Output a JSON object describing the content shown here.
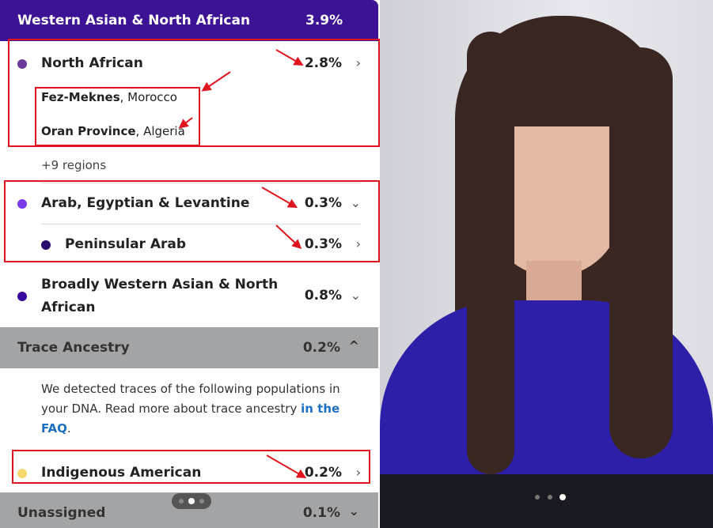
{
  "header": {
    "title": "Western Asian & North African",
    "percent": "3.9%"
  },
  "north_african": {
    "label": "North African",
    "percent": "2.8%",
    "dot_color": "#6b3a9a",
    "regions": [
      {
        "name": "Fez-Meknes",
        "country": ", Morocco"
      },
      {
        "name": "Oran Province",
        "country": ", Algeria"
      }
    ],
    "more": "+9 regions"
  },
  "arab": {
    "label": "Arab, Egyptian & Levantine",
    "percent": "0.3%",
    "dot_color": "#7c3aed",
    "child": {
      "label": "Peninsular Arab",
      "percent": "0.3%",
      "dot_color": "#2a0a6b"
    }
  },
  "broadly": {
    "label_line1": "Broadly Western Asian & North",
    "label_line2": "African",
    "percent": "0.8%",
    "dot_color": "#3a0aa0"
  },
  "trace": {
    "label": "Trace Ancestry",
    "percent": "0.2%",
    "desc1": "We detected traces of the following populations in",
    "desc2": "your DNA. Read more about trace ancestry ",
    "link1": "in the",
    "link2": "FAQ",
    "period": "."
  },
  "indigenous": {
    "label": "Indigenous American",
    "percent": "0.2%",
    "dot_color": "#f5d96b"
  },
  "unassigned": {
    "label": "Unassigned",
    "percent": "0.1%"
  },
  "colors": {
    "header": "#3d1395",
    "annotation": "#e0141e",
    "link": "#1d6fc1"
  }
}
